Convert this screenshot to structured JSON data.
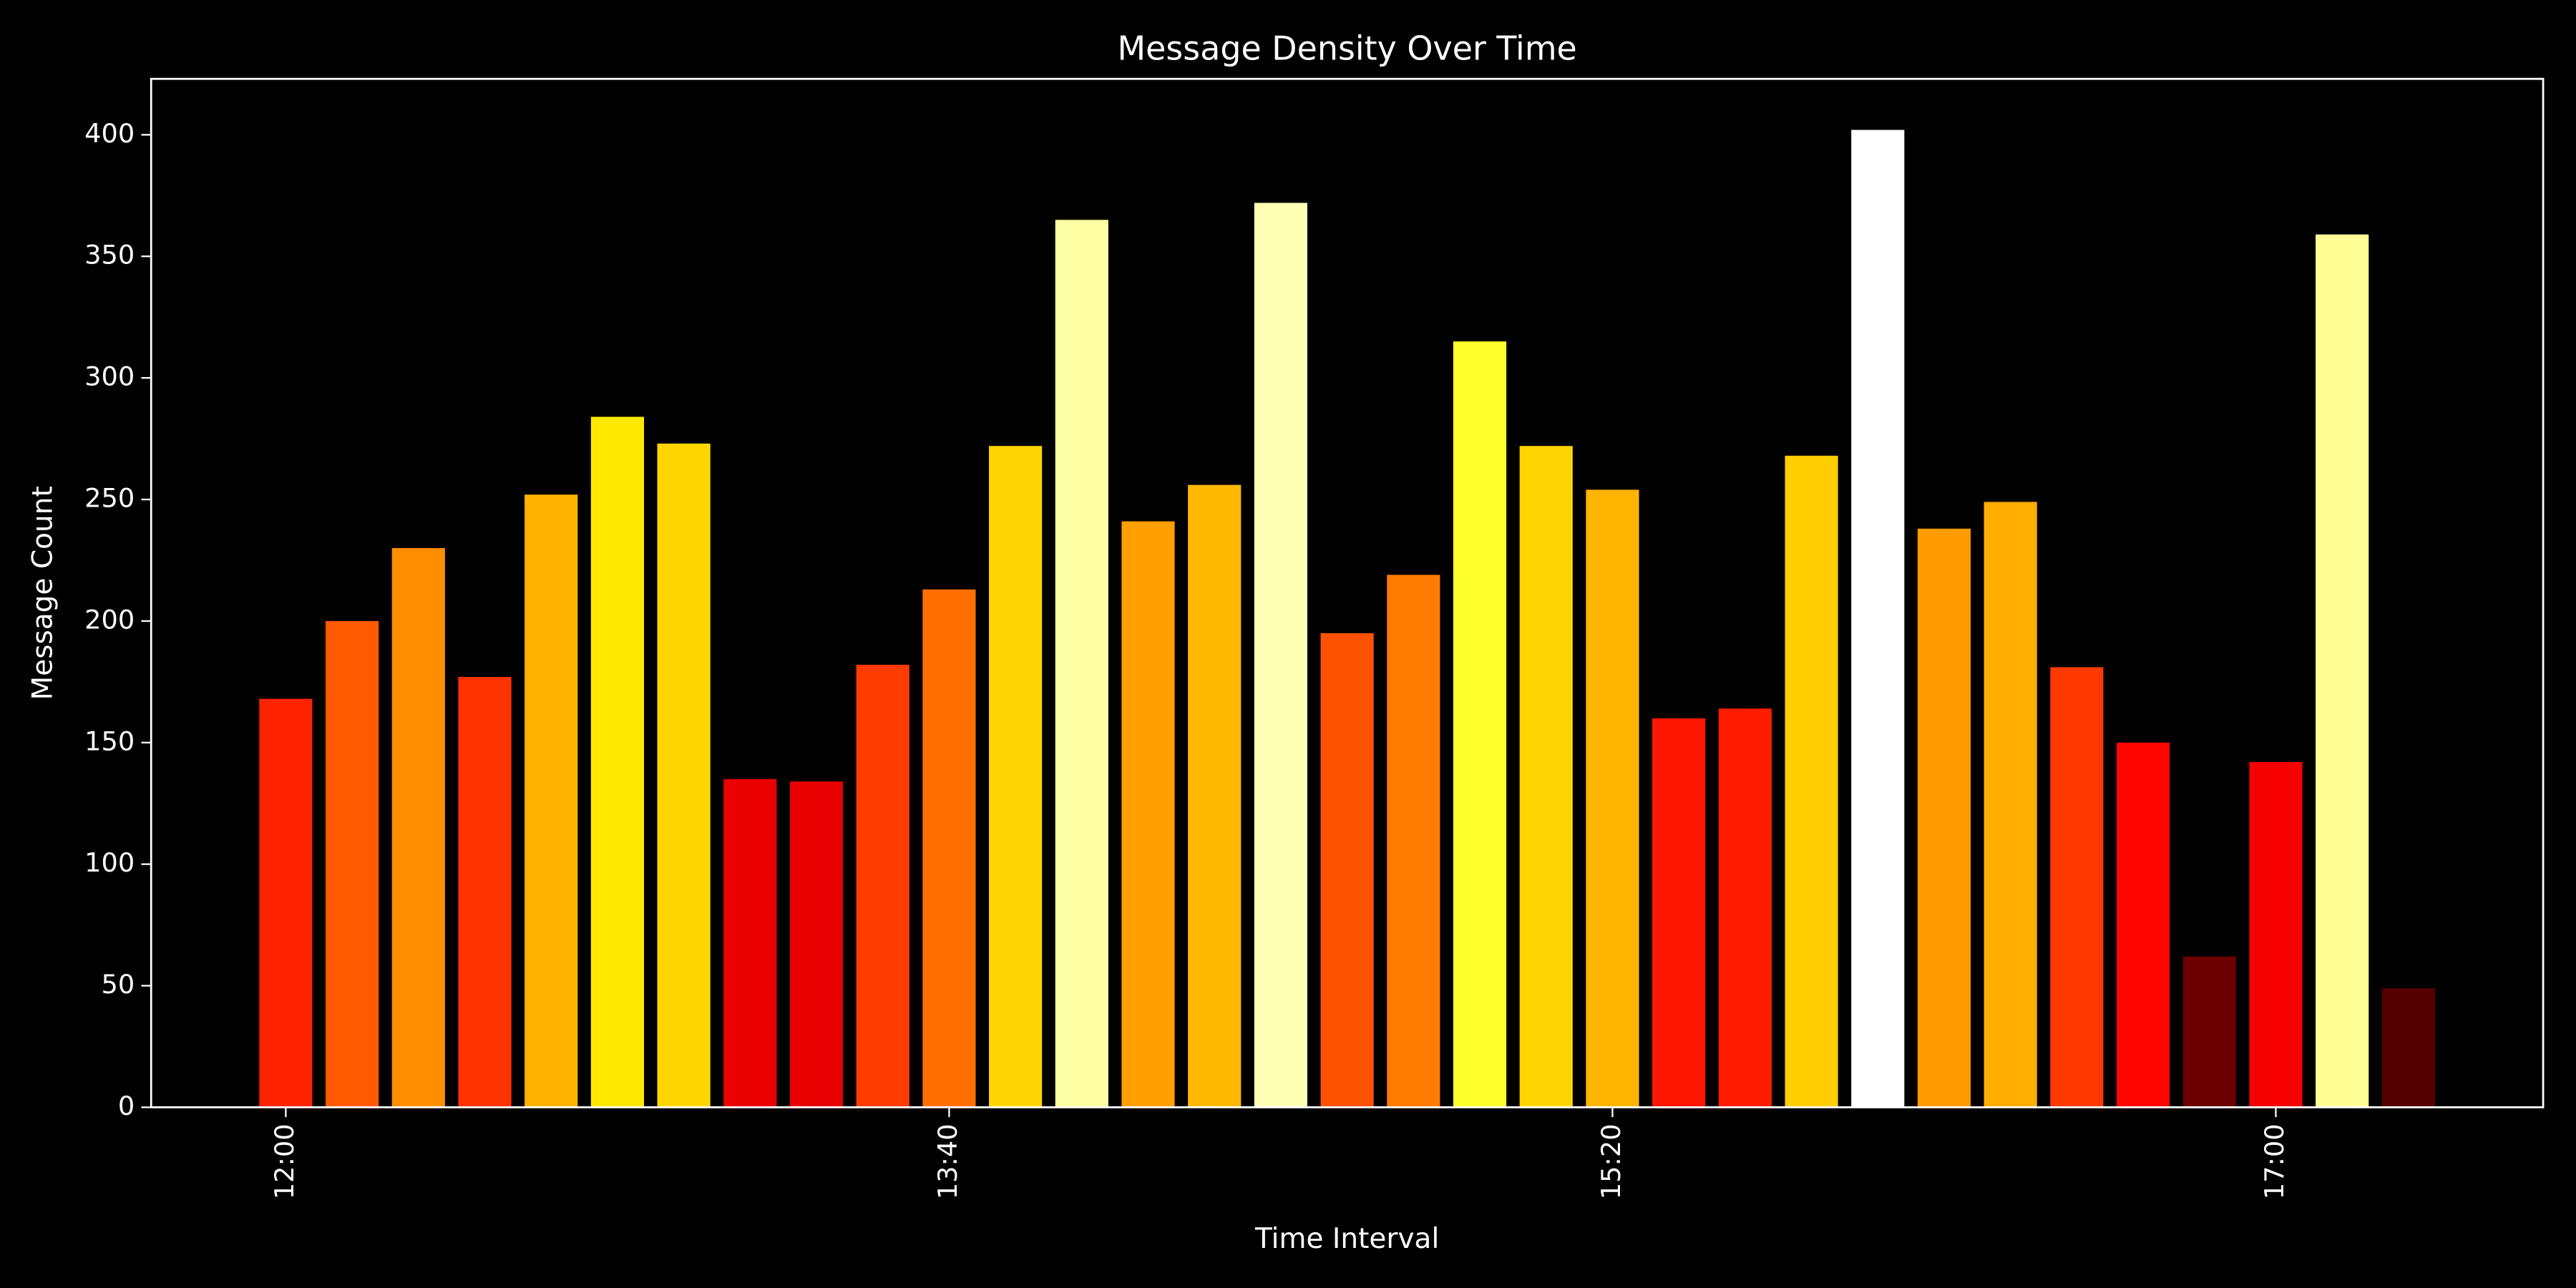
{
  "chart_data": {
    "type": "bar",
    "title": "Message Density Over Time",
    "x_label": "Time Interval",
    "y_label": "Message Count",
    "categories": [
      "12:00",
      null,
      null,
      null,
      null,
      null,
      null,
      null,
      null,
      null,
      "13:40",
      null,
      null,
      null,
      null,
      null,
      null,
      null,
      null,
      null,
      "15:20",
      null,
      null,
      null,
      null,
      null,
      null,
      null,
      null,
      null,
      "17:00",
      null,
      null
    ],
    "values": [
      168,
      200,
      230,
      177,
      252,
      284,
      273,
      135,
      134,
      182,
      213,
      272,
      365,
      241,
      256,
      372,
      195,
      219,
      315,
      272,
      254,
      160,
      164,
      268,
      402,
      238,
      249,
      181,
      150,
      62,
      142,
      359,
      49
    ],
    "colormap": "hot",
    "ylim": [
      0,
      423
    ],
    "yticks": [
      0,
      50,
      100,
      150,
      200,
      250,
      300,
      350,
      400
    ],
    "grid": false,
    "background": "#000000"
  }
}
